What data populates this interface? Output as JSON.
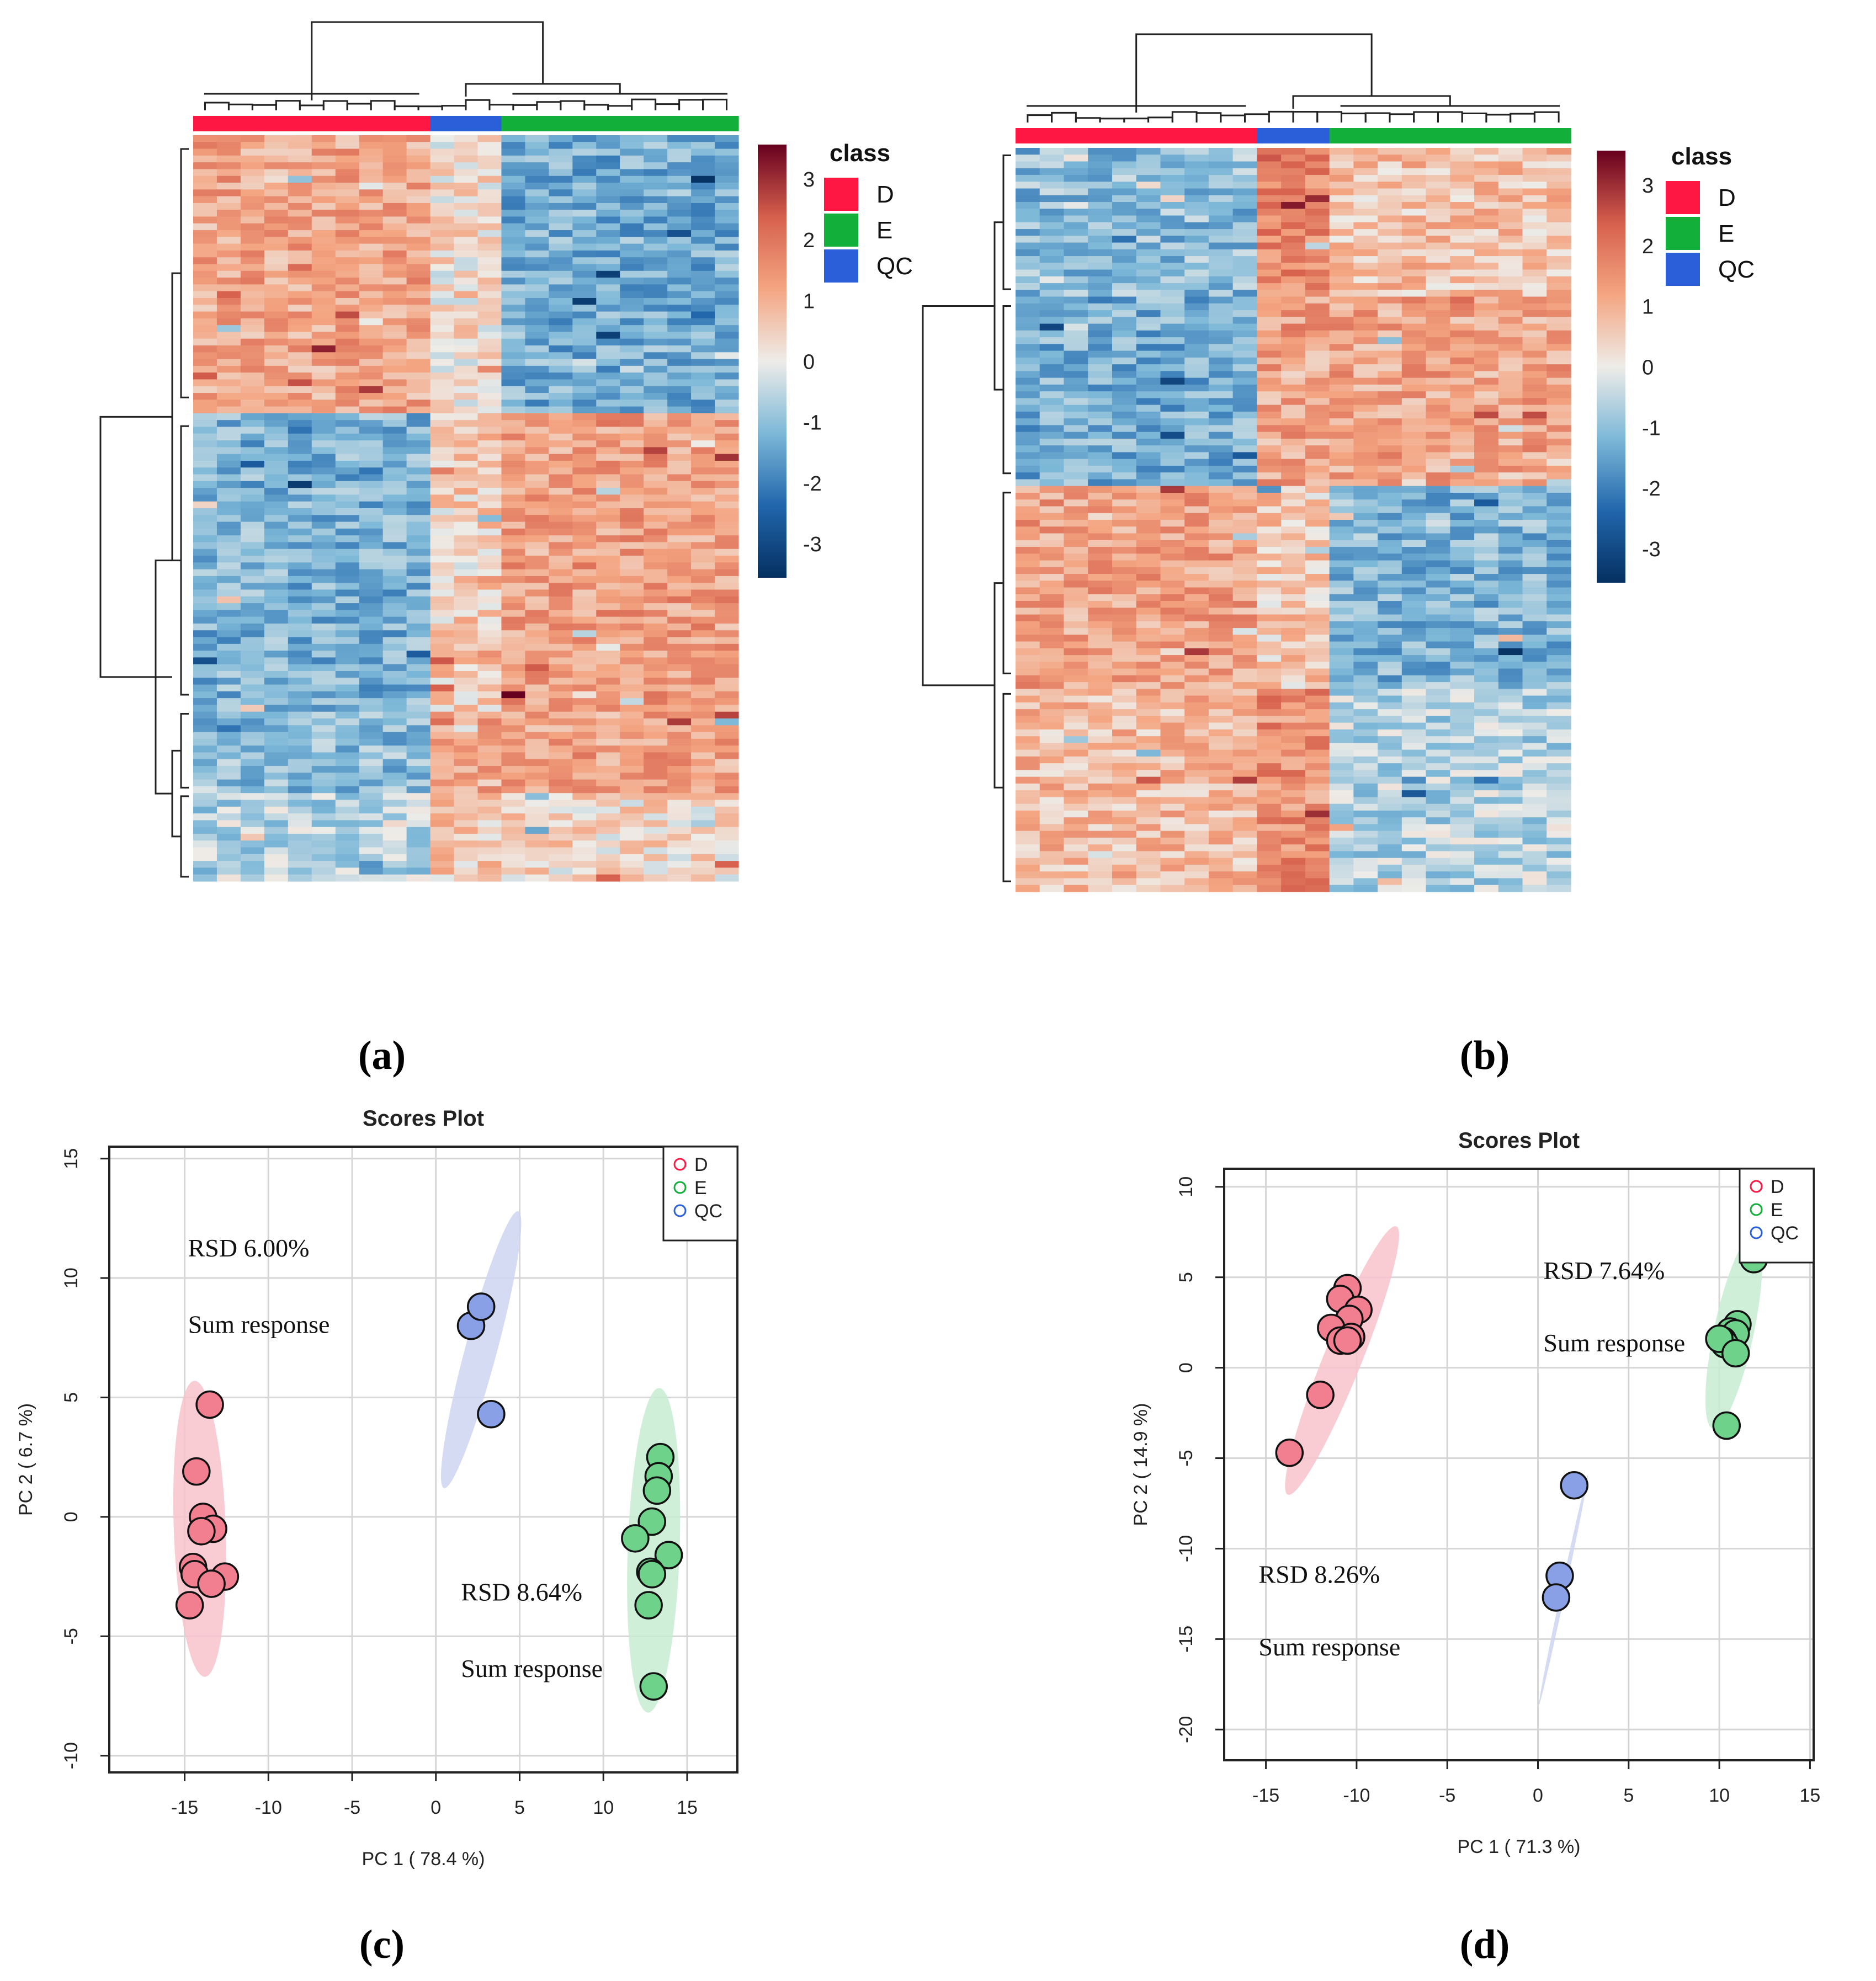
{
  "figure": {
    "panel_labels": [
      "(a)",
      "(b)",
      "(c)",
      "(d)"
    ]
  },
  "colors": {
    "D": "#ff1744",
    "E": "#12b03a",
    "QC": "#2b5fd9",
    "D_point": "#f17f8f",
    "E_point": "#6fd28b",
    "QC_point": "#8aa0e6",
    "D_ellipse": "#f8c3cc",
    "E_ellipse": "#c7ecd1",
    "QC_ellipse": "#cdd5f1"
  },
  "chart_data": [
    {
      "type": "heatmap",
      "panel": "(a)",
      "legend_title": "class",
      "classes": [
        "D",
        "E",
        "QC"
      ],
      "column_class_order": [
        "D",
        "QC",
        "E"
      ],
      "column_counts": [
        10,
        3,
        10
      ],
      "color_scale": {
        "min": -3,
        "max": 3,
        "ticks": [
          "3",
          "2",
          "1",
          "0",
          "-1",
          "-2",
          "-3"
        ]
      },
      "row_blocks": [
        {
          "fraction": 0.37,
          "values": {
            "D": 1.0,
            "QC": 0.2,
            "E": -1.1
          }
        },
        {
          "fraction": 0.4,
          "values": {
            "D": -1.05,
            "QC": 0.45,
            "E": 1.1
          }
        },
        {
          "fraction": 0.11,
          "values": {
            "D": -0.9,
            "QC": 1.0,
            "E": 1.05
          }
        },
        {
          "fraction": 0.12,
          "values": {
            "D": -0.5,
            "QC": 0.5,
            "E": 0.3
          }
        }
      ]
    },
    {
      "type": "heatmap",
      "panel": "(b)",
      "legend_title": "class",
      "classes": [
        "D",
        "E",
        "QC"
      ],
      "column_class_order": [
        "D",
        "QC",
        "E"
      ],
      "column_counts": [
        10,
        3,
        10
      ],
      "color_scale": {
        "min": -3,
        "max": 3,
        "ticks": [
          "3",
          "2",
          "1",
          "0",
          "-1",
          "-2",
          "-3"
        ]
      },
      "row_blocks": [
        {
          "fraction": 0.2,
          "values": {
            "D": -0.9,
            "QC": 1.5,
            "E": 0.6
          }
        },
        {
          "fraction": 0.25,
          "values": {
            "D": -1.1,
            "QC": 1.0,
            "E": 1.0
          }
        },
        {
          "fraction": 0.27,
          "values": {
            "D": 1.05,
            "QC": 0.5,
            "E": -1.0
          }
        },
        {
          "fraction": 0.28,
          "values": {
            "D": 0.7,
            "QC": 1.3,
            "E": -0.5
          }
        }
      ]
    },
    {
      "type": "scatter",
      "panel": "(c)",
      "title": "Scores Plot",
      "xlabel": "PC 1 ( 78.4 %)",
      "ylabel": "PC 2 ( 6.7 %)",
      "xlim": [
        -19.5,
        18
      ],
      "ylim": [
        -10.7,
        15.5
      ],
      "xticks": [
        -15,
        -10,
        -5,
        0,
        5,
        10,
        15
      ],
      "yticks": [
        -10,
        -5,
        0,
        5,
        10,
        15
      ],
      "xtick_labels": [
        "-15",
        "-10",
        "-5",
        "0",
        "5",
        "10",
        "15"
      ],
      "ytick_labels": [
        "-10",
        "-5",
        "0",
        "5",
        "10",
        "15"
      ],
      "legend": [
        "D",
        "E",
        "QC"
      ],
      "series": [
        {
          "name": "D",
          "points": [
            [
              -13.5,
              4.7
            ],
            [
              -14.3,
              1.9
            ],
            [
              -13.9,
              0.0
            ],
            [
              -13.3,
              -0.5
            ],
            [
              -14.0,
              -0.6
            ],
            [
              -14.5,
              -2.1
            ],
            [
              -14.4,
              -2.4
            ],
            [
              -12.6,
              -2.5
            ],
            [
              -13.4,
              -2.8
            ],
            [
              -14.7,
              -3.7
            ]
          ],
          "ellipse": {
            "cx": -14.1,
            "cy": -0.5,
            "rx": 1.55,
            "ry": 6.2,
            "angle": -2
          }
        },
        {
          "name": "E",
          "points": [
            [
              13.4,
              2.5
            ],
            [
              13.3,
              1.7
            ],
            [
              13.2,
              1.1
            ],
            [
              12.9,
              -0.2
            ],
            [
              11.9,
              -0.9
            ],
            [
              13.9,
              -1.6
            ],
            [
              12.8,
              -2.3
            ],
            [
              12.9,
              -2.4
            ],
            [
              12.7,
              -3.7
            ],
            [
              13.0,
              -7.1
            ]
          ],
          "ellipse": {
            "cx": 13.0,
            "cy": -1.4,
            "rx": 1.55,
            "ry": 6.8,
            "angle": 2
          }
        },
        {
          "name": "QC",
          "points": [
            [
              2.1,
              8.0
            ],
            [
              2.7,
              8.8
            ],
            [
              3.3,
              4.3
            ]
          ],
          "ellipse": {
            "cx": 2.7,
            "cy": 7.0,
            "rx": 0.95,
            "ry": 6.0,
            "angle": 15
          }
        }
      ],
      "annotations": [
        {
          "text": "RSD 6.00%",
          "x": -14.8,
          "y": 10.9
        },
        {
          "text": "Sum response",
          "x": -14.8,
          "y": 7.7
        },
        {
          "text": "RSD 8.64%",
          "x": 1.5,
          "y": -3.5
        },
        {
          "text": "Sum response",
          "x": 1.5,
          "y": -6.7
        }
      ]
    },
    {
      "type": "scatter",
      "panel": "(d)",
      "title": "Scores Plot",
      "xlabel": "PC 1 ( 71.3 %)",
      "ylabel": "PC 2 ( 14.9 %)",
      "xlim": [
        -17.3,
        15.2
      ],
      "ylim": [
        -21.7,
        11.0
      ],
      "xticks": [
        -15,
        -10,
        -5,
        0,
        5,
        10,
        15
      ],
      "yticks": [
        -20,
        -15,
        -10,
        -5,
        0,
        5,
        10
      ],
      "xtick_labels": [
        "-15",
        "-10",
        "-5",
        "0",
        "5",
        "10",
        "15"
      ],
      "ytick_labels": [
        "-20",
        "-15",
        "-10",
        "-5",
        "0",
        "5",
        "10"
      ],
      "legend": [
        "D",
        "E",
        "QC"
      ],
      "series": [
        {
          "name": "D",
          "points": [
            [
              -10.5,
              4.4
            ],
            [
              -10.9,
              3.8
            ],
            [
              -9.9,
              3.2
            ],
            [
              -10.4,
              2.7
            ],
            [
              -11.4,
              2.2
            ],
            [
              -10.9,
              1.5
            ],
            [
              -10.3,
              1.7
            ],
            [
              -10.5,
              1.5
            ],
            [
              -12.0,
              -1.5
            ],
            [
              -13.7,
              -4.7
            ]
          ],
          "ellipse": {
            "cx": -10.8,
            "cy": 0.4,
            "rx": 1.05,
            "ry": 8.0,
            "angle": 22
          }
        },
        {
          "name": "E",
          "points": [
            [
              11.9,
              6.0
            ],
            [
              11.0,
              2.4
            ],
            [
              10.6,
              2.0
            ],
            [
              10.9,
              1.9
            ],
            [
              10.2,
              1.5
            ],
            [
              10.3,
              1.3
            ],
            [
              10.0,
              1.6
            ],
            [
              10.9,
              0.8
            ],
            [
              10.4,
              -3.2
            ]
          ],
          "ellipse": {
            "cx": 10.8,
            "cy": 2.0,
            "rx": 1.1,
            "ry": 5.5,
            "angle": 12
          }
        },
        {
          "name": "QC",
          "points": [
            [
              2.0,
              -6.5
            ],
            [
              1.2,
              -11.5
            ],
            [
              1.0,
              -12.7
            ]
          ],
          "ellipse": {
            "cx": 1.4,
            "cy": -12.3,
            "rx": 0.12,
            "ry": 6.5,
            "angle": 12
          }
        }
      ],
      "annotations": [
        {
          "text": "RSD 7.64%",
          "x": 0.3,
          "y": 4.9
        },
        {
          "text": "Sum response",
          "x": 0.3,
          "y": 0.9
        },
        {
          "text": "RSD 8.26%",
          "x": -15.4,
          "y": -11.9
        },
        {
          "text": "Sum response",
          "x": -15.4,
          "y": -15.9
        }
      ]
    }
  ]
}
